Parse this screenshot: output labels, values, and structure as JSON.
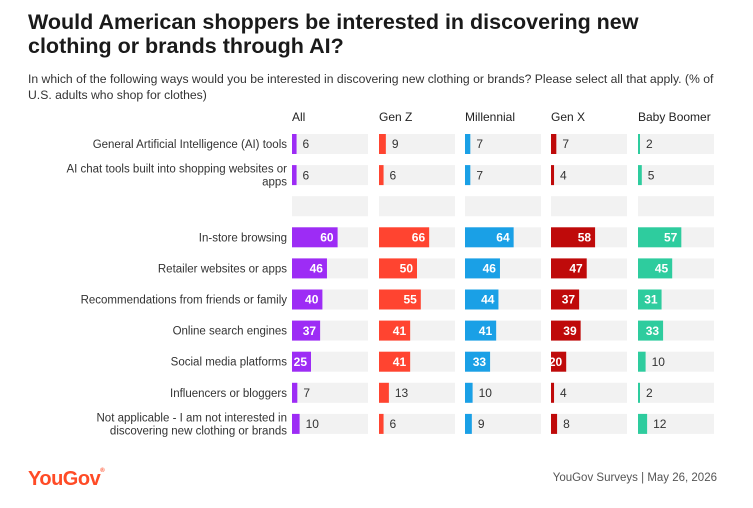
{
  "title": "Would American shoppers be interested in discovering new clothing or brands through AI?",
  "subtitle": "In which of the following ways would you be interested in discovering new clothing or brands? Please select all that apply. (% of U.S. adults who shop for clothes)",
  "footer": {
    "logo": "YouGov",
    "source": "YouGov Surveys | May 26, 2026"
  },
  "colors": {
    "track": "#f2f2f2",
    "All": "#9d2cf5",
    "Gen Z": "#ff4430",
    "Millennial": "#1aa0e6",
    "Gen X": "#bf0a0a",
    "Baby Boomer": "#2ecc9e"
  },
  "chart_data": {
    "type": "bar",
    "orientation": "horizontal",
    "xlim": [
      0,
      100
    ],
    "categories": [
      [
        "General Artificial Intelligence (AI) tools"
      ],
      [
        "AI chat tools built into shopping websites or",
        "apps"
      ],
      [
        ""
      ],
      [
        "In-store browsing"
      ],
      [
        "Retailer websites or apps"
      ],
      [
        "Recommendations from friends or family"
      ],
      [
        "Online search engines"
      ],
      [
        "Social media platforms"
      ],
      [
        "Influencers or bloggers"
      ],
      [
        "Not applicable - I am not interested in",
        "discovering new clothing or brands"
      ]
    ],
    "series": [
      {
        "name": "All",
        "values": [
          6,
          6,
          null,
          60,
          46,
          40,
          37,
          25,
          7,
          10
        ]
      },
      {
        "name": "Gen Z",
        "values": [
          9,
          6,
          null,
          66,
          50,
          55,
          41,
          41,
          13,
          6
        ]
      },
      {
        "name": "Millennial",
        "values": [
          7,
          7,
          null,
          64,
          46,
          44,
          41,
          33,
          10,
          9
        ]
      },
      {
        "name": "Gen X",
        "values": [
          7,
          4,
          null,
          58,
          47,
          37,
          39,
          20,
          4,
          8
        ]
      },
      {
        "name": "Baby Boomer",
        "values": [
          2,
          5,
          null,
          57,
          45,
          31,
          33,
          10,
          2,
          12
        ]
      }
    ]
  }
}
